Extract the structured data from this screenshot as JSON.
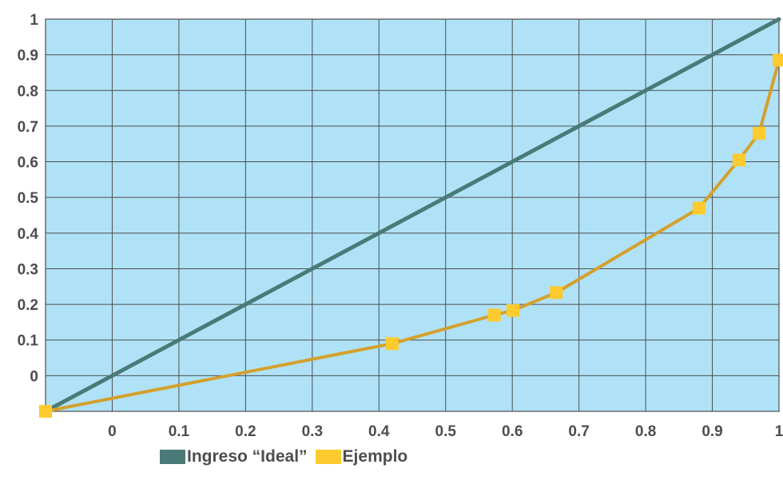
{
  "chart_data": {
    "type": "line",
    "title": "",
    "xlabel": "",
    "ylabel": "",
    "xlim": [
      -0.1,
      1
    ],
    "ylim": [
      -0.1,
      1
    ],
    "grid": true,
    "x_tick_labels": [
      "0",
      "0.1",
      "0.2",
      "0.3",
      "0.4",
      "0.5",
      "0.6",
      "0.7",
      "0.8",
      "0.9",
      "1"
    ],
    "y_tick_labels": [
      "0",
      "0.1",
      "0.2",
      "0.3",
      "0.4",
      "0.5",
      "0.6",
      "0.7",
      "0.8",
      "0.9",
      "1"
    ],
    "legend_position": "bottom",
    "background_color": "#b0e2f7",
    "series": [
      {
        "name": "Ingreso “Ideal”",
        "color": "#4a7a78",
        "markers": false,
        "points": [
          [
            -0.1,
            -0.1
          ],
          [
            1.0,
            1.0
          ]
        ]
      },
      {
        "name": "Ejemplo",
        "color": "#d4a02c",
        "marker_color": "#fdcb2e",
        "markers": true,
        "points": [
          [
            -0.1,
            -0.1
          ],
          [
            0.42,
            0.09
          ],
          [
            0.573,
            0.17
          ],
          [
            0.601,
            0.183
          ],
          [
            0.666,
            0.233
          ],
          [
            0.88,
            0.47
          ],
          [
            0.94,
            0.605
          ],
          [
            0.97,
            0.68
          ],
          [
            1.0,
            0.885
          ]
        ]
      }
    ]
  }
}
